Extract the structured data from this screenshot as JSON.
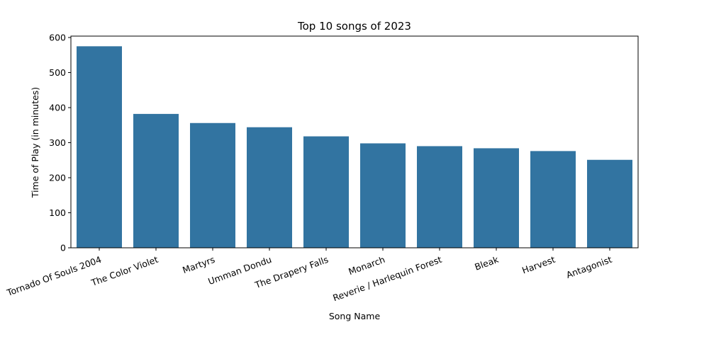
{
  "chart_data": {
    "type": "bar",
    "title": "Top 10 songs of 2023",
    "xlabel": "Song Name",
    "ylabel": "Time of Play (in minutes)",
    "categories": [
      "Tornado Of Souls 2004",
      "The Color Violet",
      "Martyrs",
      "Umman Dondu",
      "The Drapery Falls",
      "Monarch",
      "Reverie / Harlequin Forest",
      "Bleak",
      "Harvest",
      "Antagonist"
    ],
    "values": [
      575,
      382,
      356,
      344,
      318,
      298,
      290,
      284,
      276,
      251
    ],
    "ylim": [
      0,
      604
    ],
    "yticks": [
      0,
      100,
      200,
      300,
      400,
      500,
      600
    ],
    "xtick_rotation_deg": 20,
    "grid": false,
    "legend": "none",
    "bar_color": "#3274a1"
  }
}
